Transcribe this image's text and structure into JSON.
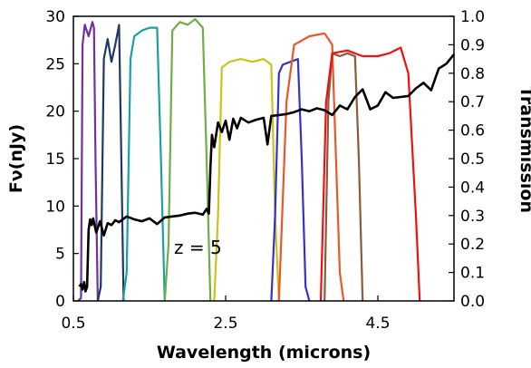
{
  "chart_data": {
    "type": "line",
    "xlabel": "Wavelength (microns)",
    "ylabel_left": "Fν(nJy)",
    "ylabel_right": "Transmission",
    "annotation": "z = 5",
    "xlim": [
      0.5,
      5.5
    ],
    "ylim_left": [
      0,
      30
    ],
    "ylim_right": [
      0,
      1.0
    ],
    "xticks": [
      0.5,
      2.5,
      4.5
    ],
    "xtick_labels": [
      "0.5",
      "2.5",
      "4.5"
    ],
    "yticks_left": [
      0,
      5,
      10,
      15,
      20,
      25,
      30
    ],
    "ytick_labels_left": [
      "0",
      "5",
      "10",
      "15",
      "20",
      "25",
      "30"
    ],
    "yticks_right": [
      0.0,
      0.1,
      0.2,
      0.3,
      0.4,
      0.5,
      0.6,
      0.7,
      0.8,
      0.9,
      1.0
    ],
    "ytick_labels_right": [
      "0.0",
      "0.1",
      "0.2",
      "0.3",
      "0.4",
      "0.5",
      "0.6",
      "0.7",
      "0.8",
      "0.9",
      "1.0"
    ],
    "grid": false,
    "spectrum": {
      "axis": "left",
      "color": "#000000",
      "x": [
        0.58,
        0.6,
        0.62,
        0.64,
        0.66,
        0.68,
        0.7,
        0.72,
        0.74,
        0.76,
        0.8,
        0.85,
        0.9,
        0.95,
        1.0,
        1.05,
        1.1,
        1.2,
        1.3,
        1.4,
        1.5,
        1.6,
        1.7,
        1.8,
        1.9,
        2.0,
        2.1,
        2.2,
        2.25,
        2.28,
        2.3,
        2.32,
        2.35,
        2.4,
        2.45,
        2.5,
        2.55,
        2.6,
        2.65,
        2.7,
        2.8,
        2.9,
        3.0,
        3.05,
        3.1,
        3.2,
        3.3,
        3.4,
        3.5,
        3.6,
        3.7,
        3.8,
        3.9,
        4.0,
        4.1,
        4.2,
        4.3,
        4.4,
        4.5,
        4.6,
        4.7,
        4.8,
        4.9,
        5.0,
        5.1,
        5.2,
        5.3,
        5.4,
        5.5
      ],
      "y": [
        1.5,
        1.8,
        1.2,
        2.0,
        1.0,
        1.5,
        7.5,
        8.6,
        8.0,
        8.7,
        7.2,
        8.4,
        6.9,
        8.2,
        8.0,
        8.5,
        8.3,
        8.9,
        8.6,
        8.4,
        8.7,
        8.1,
        8.8,
        8.9,
        9.0,
        9.2,
        9.3,
        9.1,
        9.7,
        9.2,
        14.0,
        17.5,
        16.2,
        18.8,
        17.8,
        19.0,
        17.0,
        19.2,
        18.2,
        19.3,
        18.8,
        19.1,
        19.3,
        16.5,
        19.5,
        19.6,
        19.7,
        19.9,
        20.2,
        20.0,
        20.3,
        20.1,
        19.6,
        20.6,
        20.2,
        21.5,
        22.3,
        20.2,
        20.6,
        22.0,
        21.4,
        21.5,
        21.6,
        22.4,
        23.0,
        22.2,
        24.5,
        25.0,
        26.0
      ]
    },
    "filters": [
      {
        "axis": "right",
        "color": "#7030a0",
        "x": [
          0.56,
          0.6,
          0.62,
          0.65,
          0.7,
          0.75,
          0.77,
          0.79,
          0.82
        ],
        "y": [
          0.0,
          0.01,
          0.9,
          0.97,
          0.93,
          0.98,
          0.96,
          0.5,
          0.0
        ]
      },
      {
        "axis": "right",
        "color": "#1f3864",
        "x": [
          0.82,
          0.86,
          0.9,
          0.95,
          1.0,
          1.05,
          1.1,
          1.13,
          1.16
        ],
        "y": [
          0.0,
          0.05,
          0.85,
          0.92,
          0.84,
          0.9,
          0.97,
          0.5,
          0.0
        ]
      },
      {
        "axis": "right",
        "color": "#17a2a0",
        "x": [
          1.15,
          1.2,
          1.25,
          1.3,
          1.4,
          1.5,
          1.6,
          1.65,
          1.7
        ],
        "y": [
          0.0,
          0.1,
          0.85,
          0.93,
          0.95,
          0.96,
          0.96,
          0.5,
          0.0
        ]
      },
      {
        "axis": "right",
        "color": "#70ad47",
        "x": [
          1.7,
          1.75,
          1.8,
          1.9,
          2.0,
          2.1,
          2.2,
          2.25,
          2.3
        ],
        "y": [
          0.0,
          0.2,
          0.95,
          0.98,
          0.97,
          0.99,
          0.96,
          0.5,
          0.0
        ]
      },
      {
        "axis": "right",
        "color": "#c9c41a",
        "x": [
          2.35,
          2.4,
          2.45,
          2.55,
          2.7,
          2.85,
          3.0,
          3.1,
          3.15,
          3.2
        ],
        "y": [
          0.0,
          0.3,
          0.82,
          0.84,
          0.85,
          0.84,
          0.85,
          0.83,
          0.3,
          0.0
        ]
      },
      {
        "axis": "right",
        "color": "#3333cc",
        "x": [
          3.1,
          3.15,
          3.2,
          3.25,
          3.35,
          3.45,
          3.5,
          3.55,
          3.6
        ],
        "y": [
          0.0,
          0.3,
          0.8,
          0.83,
          0.84,
          0.85,
          0.5,
          0.05,
          0.0
        ]
      },
      {
        "axis": "right",
        "color": "#e8572a",
        "x": [
          3.2,
          3.3,
          3.4,
          3.6,
          3.8,
          3.9,
          3.95,
          4.0,
          4.05
        ],
        "y": [
          0.0,
          0.7,
          0.9,
          0.93,
          0.94,
          0.9,
          0.5,
          0.1,
          0.0
        ]
      },
      {
        "axis": "right",
        "color": "#8b5a3c",
        "x": [
          3.8,
          3.85,
          3.9,
          4.0,
          4.1,
          4.2,
          4.25,
          4.3
        ],
        "y": [
          0.0,
          0.7,
          0.87,
          0.86,
          0.87,
          0.86,
          0.5,
          0.0
        ]
      },
      {
        "axis": "right",
        "color": "#ee1111",
        "x": [
          3.75,
          3.82,
          3.9,
          4.1,
          4.3,
          4.5,
          4.65,
          4.8,
          4.9,
          5.0,
          5.05
        ],
        "y": [
          0.0,
          0.7,
          0.87,
          0.88,
          0.86,
          0.86,
          0.87,
          0.89,
          0.8,
          0.3,
          0.0
        ]
      }
    ]
  }
}
